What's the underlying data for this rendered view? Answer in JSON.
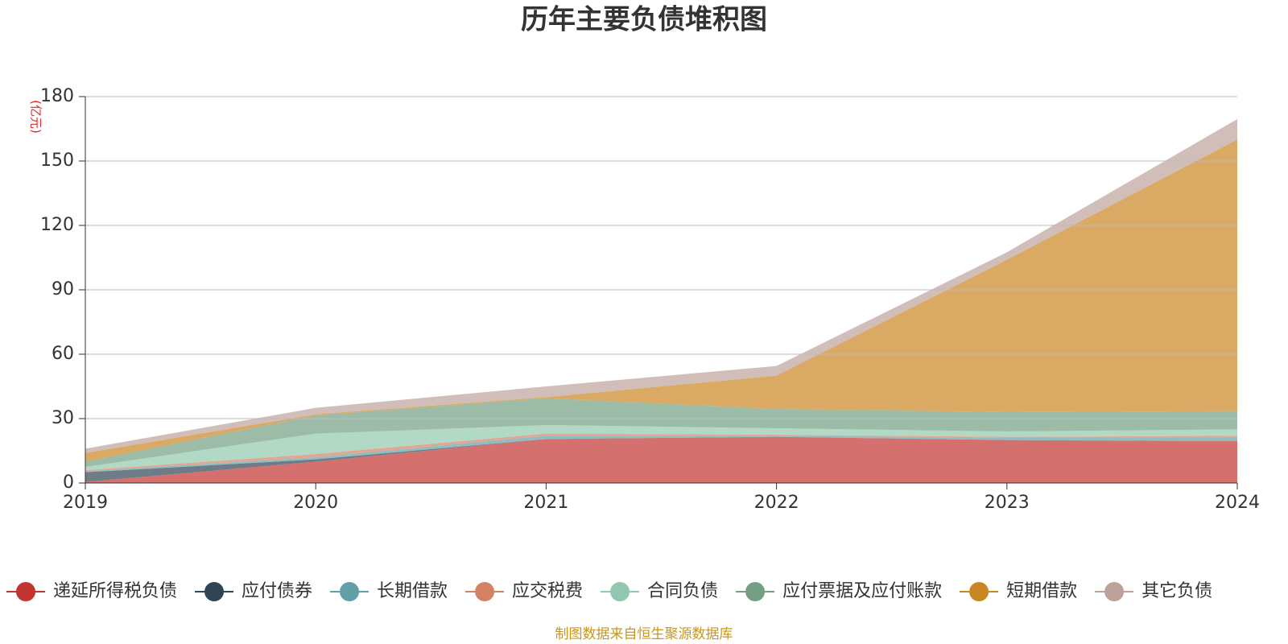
{
  "chart_data": {
    "type": "stacked_area",
    "title": "历年主要负债堆积图",
    "y_unit": "(亿元)",
    "categories": [
      "2019",
      "2020",
      "2021",
      "2022",
      "2023",
      "2024"
    ],
    "series": [
      {
        "name": "递延所得税负债",
        "color": "#c23531",
        "values": [
          0.5,
          10,
          20.5,
          21.5,
          20,
          19.5
        ]
      },
      {
        "name": "应付债券",
        "color": "#2f4554",
        "values": [
          4.5,
          1,
          0,
          0,
          0,
          0
        ]
      },
      {
        "name": "长期借款",
        "color": "#61a0a8",
        "values": [
          0.5,
          1,
          1.5,
          0.5,
          1,
          1.5
        ]
      },
      {
        "name": "应交税费",
        "color": "#d48265",
        "values": [
          0.5,
          1.5,
          1,
          0.5,
          0.5,
          1
        ]
      },
      {
        "name": "合同负债",
        "color": "#91c7ae",
        "values": [
          1.5,
          9.5,
          4,
          3,
          2.5,
          3
        ]
      },
      {
        "name": "应付票据及应付账款",
        "color": "#749f83",
        "values": [
          2.5,
          8.5,
          12.5,
          9,
          9,
          8.5
        ]
      },
      {
        "name": "短期借款",
        "color": "#ca8622",
        "values": [
          4,
          0.5,
          0.5,
          15.5,
          71,
          126.5
        ]
      },
      {
        "name": "其它负债",
        "color": "#bda29a",
        "values": [
          2,
          3,
          5,
          4.5,
          3.5,
          9.5
        ]
      }
    ],
    "ylim": [
      0,
      180
    ],
    "yticks": [
      0,
      30,
      60,
      90,
      120,
      150,
      180
    ],
    "grid": true,
    "source": "制图数据来自恒生聚源数据库"
  }
}
